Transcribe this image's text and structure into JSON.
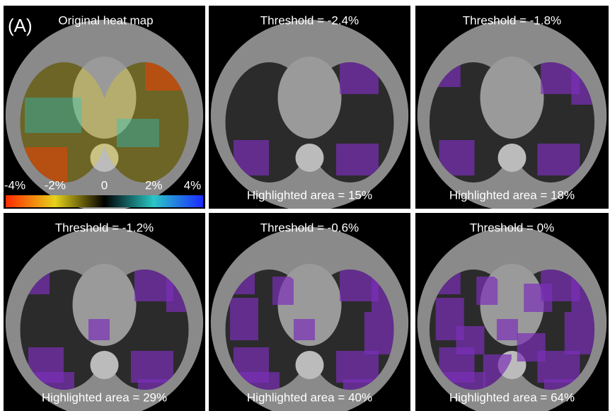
{
  "label": "(A)",
  "panels": [
    {
      "title": "Original heat map"
    },
    {
      "title": "Threshold = -2.4%",
      "caption": "Highlighted area = 15%"
    },
    {
      "title": "Threshold = -1.8%",
      "caption": "Highlighted area = 18%"
    },
    {
      "title": "Threshold = -1.2%",
      "caption": "Highlighted area = 29%"
    },
    {
      "title": "Threshold = -0.6%",
      "caption": "Highlighted area = 40%"
    },
    {
      "title": "Threshold = 0%",
      "caption": "Highlighted area = 64%"
    }
  ],
  "colorbar": {
    "ticks": [
      "-4%",
      "-2%",
      "0",
      "2%",
      "4%"
    ]
  }
}
